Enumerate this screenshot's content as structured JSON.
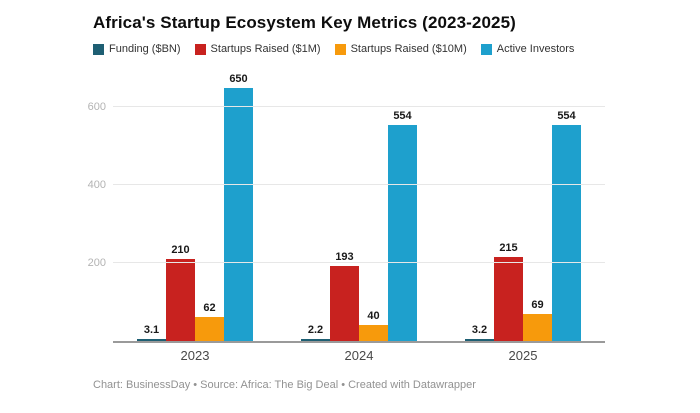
{
  "title": "Africa's Startup Ecosystem Key Metrics (2023-2025)",
  "footer": {
    "text": "Chart: BusinessDay • Source: Africa: The Big Deal • Created with Datawrapper"
  },
  "colors": {
    "funding": "#1e5f73",
    "startups_1m": "#c8221f",
    "startups_10m": "#f79a0c",
    "active_investors": "#1ea0cd",
    "baseline": "#9a9a9a",
    "gridline": "#e7e7e7",
    "ytick_text": "#b3b3b3"
  },
  "chart_data": {
    "type": "bar",
    "title": "Africa's Startup Ecosystem Key Metrics (2023-2025)",
    "categories": [
      "2023",
      "2024",
      "2025"
    ],
    "series": [
      {
        "name": "Funding ($BN)",
        "color": "#1e5f73",
        "values": [
          3.1,
          2.2,
          3.2
        ],
        "labels": [
          "3.1",
          "2.2",
          "3.2"
        ]
      },
      {
        "name": "Startups Raised ($1M)",
        "color": "#c8221f",
        "values": [
          210,
          193,
          215
        ],
        "labels": [
          "210",
          "193",
          "215"
        ]
      },
      {
        "name": "Startups Raised ($10M)",
        "color": "#f79a0c",
        "values": [
          62,
          40,
          69
        ],
        "labels": [
          "62",
          "40",
          "69"
        ]
      },
      {
        "name": "Active Investors",
        "color": "#1ea0cd",
        "values": [
          650,
          554,
          554
        ],
        "labels": [
          "650",
          "554",
          "554"
        ]
      }
    ],
    "xlabel": "",
    "ylabel": "",
    "yticks": [
      200,
      400,
      600
    ],
    "ylim": [
      0,
      682
    ],
    "grid": true,
    "legend_position": "top"
  }
}
